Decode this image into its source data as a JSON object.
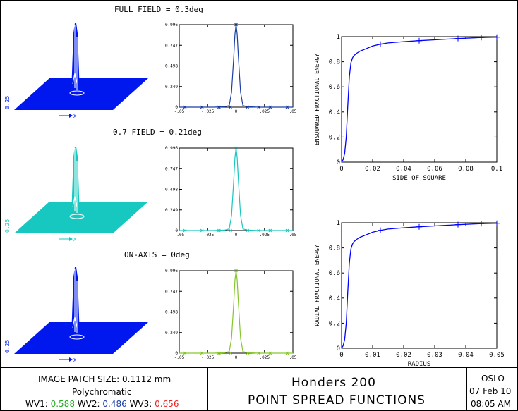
{
  "colors": {
    "blue": "#0000ff",
    "cyan": "#19c7bf",
    "green": "#86c62a",
    "navy": "#1b3fa6",
    "red": "#ee2222",
    "surface_blue": "#0018ee",
    "surface_cyan": "#16c8c0"
  },
  "fields": [
    {
      "label": "FULL FIELD = 0.3deg",
      "color_key": "blue"
    },
    {
      "label": "0.7 FIELD = 0.21deg",
      "color_key": "cyan"
    },
    {
      "label": "ON-AXIS = 0deg",
      "color_key": "green"
    }
  ],
  "surface_labels": {
    "z": "0.25",
    "x": "X"
  },
  "chart_data": [
    {
      "type": "line",
      "panel": "psf-full-field",
      "x_ticks": [
        -0.05,
        -0.025,
        0,
        0.025,
        0.05
      ],
      "y_ticks": [
        0,
        0.249,
        0.498,
        0.747,
        0.996
      ],
      "xlim": [
        -0.05,
        0.05
      ],
      "ylim": [
        0,
        0.996
      ],
      "series": [
        {
          "color_key": "navy",
          "x": [
            -0.05,
            -0.02,
            -0.01,
            -0.006,
            -0.004,
            -0.002,
            -0.001,
            0,
            0.001,
            0.002,
            0.004,
            0.006,
            0.01,
            0.02,
            0.05
          ],
          "y": [
            0,
            0,
            0.005,
            0.02,
            0.18,
            0.62,
            0.88,
            0.996,
            0.88,
            0.62,
            0.18,
            0.02,
            0.005,
            0,
            0
          ]
        }
      ]
    },
    {
      "type": "line",
      "panel": "psf-07-field",
      "x_ticks": [
        -0.05,
        -0.025,
        0,
        0.025,
        0.05
      ],
      "y_ticks": [
        0,
        0.249,
        0.498,
        0.747,
        0.996
      ],
      "xlim": [
        -0.05,
        0.05
      ],
      "ylim": [
        0,
        0.996
      ],
      "series": [
        {
          "color_key": "cyan",
          "x": [
            -0.05,
            -0.02,
            -0.01,
            -0.006,
            -0.004,
            -0.002,
            -0.001,
            0,
            0.001,
            0.002,
            0.004,
            0.006,
            0.01,
            0.02,
            0.05
          ],
          "y": [
            0,
            0,
            0.005,
            0.02,
            0.18,
            0.62,
            0.88,
            0.996,
            0.88,
            0.62,
            0.18,
            0.02,
            0.005,
            0,
            0
          ]
        }
      ]
    },
    {
      "type": "line",
      "panel": "psf-on-axis",
      "x_ticks": [
        -0.05,
        -0.025,
        0,
        0.025,
        0.05
      ],
      "y_ticks": [
        0,
        0.249,
        0.498,
        0.747,
        0.996
      ],
      "xlim": [
        -0.05,
        0.05
      ],
      "ylim": [
        0,
        0.996
      ],
      "series": [
        {
          "color_key": "green",
          "x": [
            -0.05,
            -0.02,
            -0.01,
            -0.006,
            -0.004,
            -0.002,
            -0.001,
            0,
            0.001,
            0.002,
            0.004,
            0.006,
            0.01,
            0.02,
            0.05
          ],
          "y": [
            0,
            0,
            0.005,
            0.02,
            0.18,
            0.62,
            0.88,
            0.996,
            0.88,
            0.62,
            0.18,
            0.02,
            0.005,
            0,
            0
          ]
        }
      ]
    },
    {
      "type": "line",
      "panel": "ensquared-energy",
      "xlabel": "SIDE OF SQUARE",
      "ylabel": "ENSQUARED FRACTIONAL ENERGY",
      "x_ticks": [
        0,
        0.02,
        0.04,
        0.06,
        0.08,
        0.1
      ],
      "y_ticks": [
        0,
        0.2,
        0.4,
        0.6,
        0.8,
        1
      ],
      "xlim": [
        0,
        0.1
      ],
      "ylim": [
        0,
        1
      ],
      "series": [
        {
          "color_key": "blue",
          "x": [
            0,
            0.001,
            0.002,
            0.003,
            0.004,
            0.005,
            0.006,
            0.007,
            0.008,
            0.01,
            0.012,
            0.015,
            0.02,
            0.025,
            0.03,
            0.04,
            0.05,
            0.06,
            0.075,
            0.09,
            0.1
          ],
          "y": [
            0,
            0.02,
            0.07,
            0.2,
            0.45,
            0.68,
            0.79,
            0.83,
            0.85,
            0.87,
            0.885,
            0.9,
            0.925,
            0.94,
            0.95,
            0.96,
            0.968,
            0.975,
            0.985,
            0.993,
            0.996
          ]
        }
      ]
    },
    {
      "type": "line",
      "panel": "radial-energy",
      "xlabel": "RADIUS",
      "ylabel": "RADIAL FRACTIONAL ENERGY",
      "x_ticks": [
        0,
        0.01,
        0.02,
        0.03,
        0.04,
        0.05
      ],
      "y_ticks": [
        0,
        0.2,
        0.4,
        0.6,
        0.8,
        1
      ],
      "xlim": [
        0,
        0.05
      ],
      "ylim": [
        0,
        1
      ],
      "series": [
        {
          "color_key": "blue",
          "x": [
            0,
            0.0005,
            0.001,
            0.0015,
            0.002,
            0.0025,
            0.003,
            0.0035,
            0.004,
            0.005,
            0.006,
            0.0075,
            0.01,
            0.0125,
            0.015,
            0.02,
            0.025,
            0.03,
            0.0375,
            0.045,
            0.05
          ],
          "y": [
            0,
            0.02,
            0.07,
            0.2,
            0.45,
            0.68,
            0.79,
            0.83,
            0.85,
            0.87,
            0.885,
            0.9,
            0.925,
            0.94,
            0.95,
            0.96,
            0.968,
            0.975,
            0.985,
            0.993,
            0.996
          ]
        }
      ]
    }
  ],
  "footer": {
    "patch": "IMAGE PATCH SIZE: 0.1112 mm",
    "mode": "Polychromatic",
    "wv1_label": "WV1:",
    "wv1_value": "0.588",
    "wv2_label": "WV2:",
    "wv2_value": "0.486",
    "wv3_label": "WV3:",
    "wv3_value": "0.656",
    "lens_name": "Honders 200",
    "plot_title": "POINT SPREAD FUNCTIONS",
    "program": "OSLO",
    "date": "07 Feb 10",
    "time": "08:05 AM"
  }
}
